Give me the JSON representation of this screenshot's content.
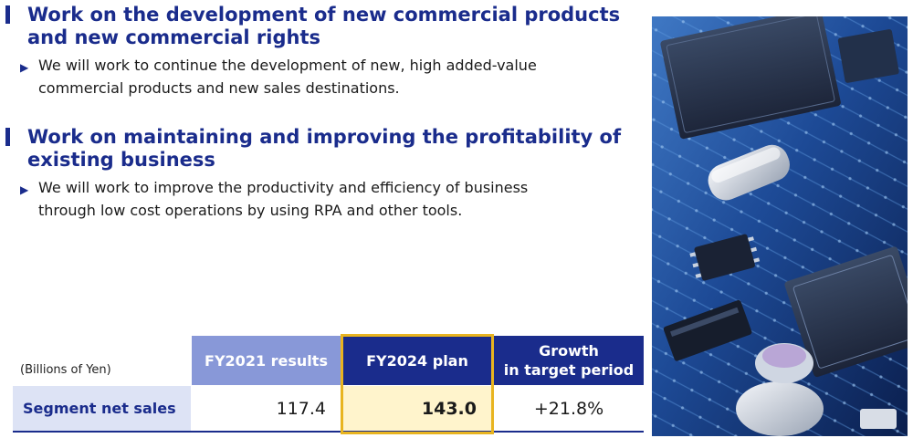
{
  "sections": [
    {
      "heading_line1": "Work on the development of new commercial products",
      "heading_line2": "and new commercial rights",
      "bullet_line1": "We will work  to continue the development of new, high added-value",
      "bullet_line2": "commercial products and new sales destinations."
    },
    {
      "heading_line1": "Work on maintaining and improving the profitability of",
      "heading_line2": "existing business",
      "bullet_line1": "We will work to improve the productivity and efficiency of business",
      "bullet_line2": "through low cost operations by using RPA and other tools."
    }
  ],
  "bullet_marker": "▶",
  "table": {
    "unit": "(Billions of Yen)",
    "headers": {
      "fy2021": "FY2021 results",
      "fy2024": "FY2024 plan",
      "growth_line1": "Growth",
      "growth_line2": "in target period"
    },
    "row": {
      "label": "Segment net sales",
      "fy2021": "117.4",
      "fy2024": "143.0",
      "growth": "+21.8%"
    }
  },
  "colors": {
    "brand": "#1a2c8c",
    "header_light": "#8898d8",
    "highlight_border": "#e8b420",
    "highlight_fill": "#fff4cc"
  }
}
